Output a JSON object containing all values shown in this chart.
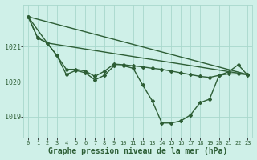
{
  "bg_color": "#cff0e8",
  "grid_color": "#a8d8cc",
  "line_color": "#2d5e35",
  "title": "Graphe pression niveau de la mer (hPa)",
  "xlim": [
    -0.5,
    23.5
  ],
  "ylim": [
    1018.4,
    1022.2
  ],
  "yticks": [
    1019,
    1020,
    1021
  ],
  "ytick_labels": [
    "1019",
    "1020",
    "1021"
  ],
  "xtick_labels": [
    "0",
    "1",
    "2",
    "3",
    "4",
    "5",
    "6",
    "7",
    "8",
    "9",
    "10",
    "11",
    "12",
    "13",
    "14",
    "15",
    "16",
    "17",
    "18",
    "19",
    "20",
    "21",
    "22",
    "23"
  ],
  "series1_x": [
    0,
    1,
    2,
    3,
    4,
    5,
    6,
    7,
    8,
    9,
    10,
    11,
    12,
    13,
    14,
    15,
    16,
    17,
    18,
    19,
    20,
    21,
    22,
    23
  ],
  "series1_y": [
    1021.85,
    1021.25,
    1021.1,
    1020.75,
    1020.35,
    1020.35,
    1020.3,
    1020.15,
    1020.3,
    1020.5,
    1020.48,
    1020.45,
    1020.42,
    1020.38,
    1020.35,
    1020.3,
    1020.25,
    1020.2,
    1020.15,
    1020.12,
    1020.18,
    1020.22,
    1020.22,
    1020.2
  ],
  "series2_x": [
    0,
    1,
    2,
    3,
    4,
    5,
    6,
    7,
    8,
    9,
    10,
    11,
    12,
    13,
    14,
    15,
    16,
    17,
    18,
    19,
    20,
    21,
    22,
    23
  ],
  "series2_y": [
    1021.85,
    1021.25,
    1021.1,
    1020.75,
    1020.2,
    1020.32,
    1020.25,
    1020.05,
    1020.18,
    1020.45,
    1020.45,
    1020.38,
    1019.9,
    1019.45,
    1018.82,
    1018.82,
    1018.88,
    1019.05,
    1019.4,
    1019.5,
    1020.18,
    1020.28,
    1020.48,
    1020.18
  ],
  "series3_x": [
    0,
    23
  ],
  "series3_y": [
    1021.85,
    1020.2
  ],
  "series4_x": [
    0,
    2,
    23
  ],
  "series4_y": [
    1021.85,
    1021.1,
    1020.2
  ],
  "fontsize_title": 7,
  "markersize": 2.0,
  "linewidth": 1.0
}
